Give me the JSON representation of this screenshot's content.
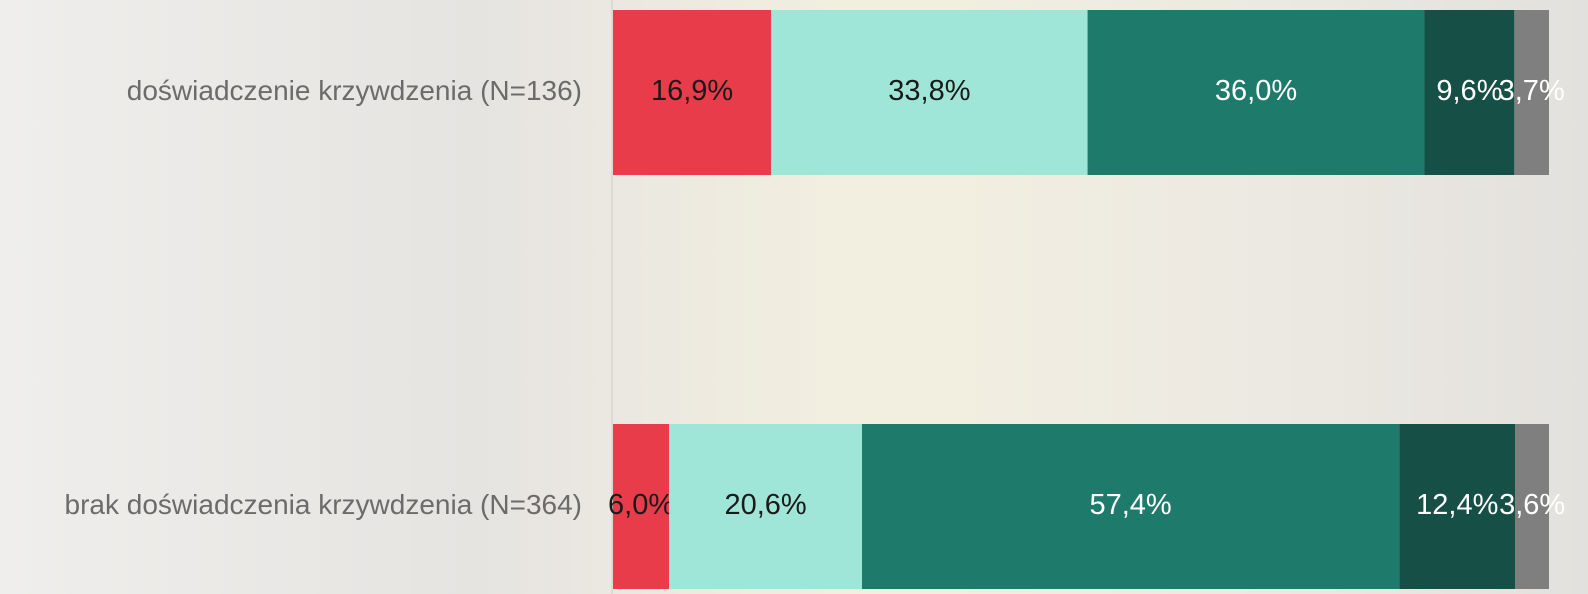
{
  "chart_data": {
    "type": "stacked-bar-horizontal",
    "categories": [
      "doświadczenie krzywdzenia (N=136)",
      "brak doświadczenia krzywdzenia (N=364)"
    ],
    "series": [
      {
        "color": "#e83c4a",
        "values": [
          16.9,
          6.0
        ],
        "value_labels": [
          "16,9%",
          "6,0%"
        ]
      },
      {
        "color": "#a0e6d8",
        "values": [
          33.8,
          20.6
        ],
        "value_labels": [
          "33,8%",
          "20,6%"
        ]
      },
      {
        "color": "#1e7b6b",
        "values": [
          36.0,
          57.4
        ],
        "value_labels": [
          "36,0%",
          "57,4%"
        ]
      },
      {
        "color": "#164f45",
        "values": [
          9.6,
          12.4
        ],
        "value_labels": [
          "9,6%",
          "12,4%"
        ]
      },
      {
        "color": "#7f7f7f",
        "values": [
          3.7,
          3.6
        ],
        "value_labels": [
          "3,7%",
          "3,6%"
        ]
      }
    ],
    "xlim": [
      0,
      100
    ]
  }
}
